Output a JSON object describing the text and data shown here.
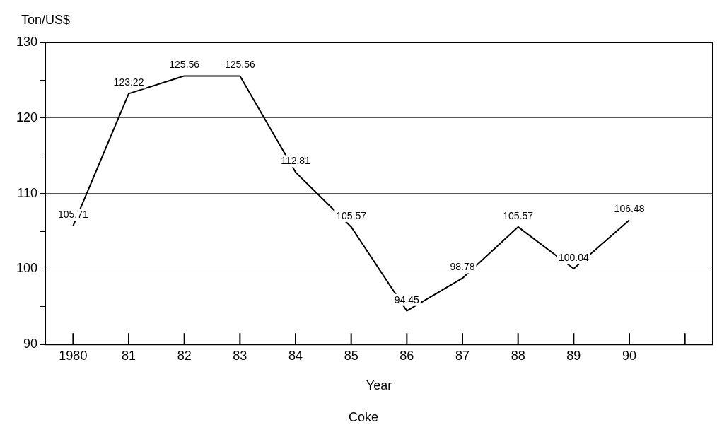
{
  "chart_data": {
    "type": "line",
    "title": "Coke",
    "xlabel": "Year",
    "ylabel": "Ton/US$",
    "categories": [
      "1980",
      "81",
      "82",
      "83",
      "84",
      "85",
      "86",
      "87",
      "88",
      "89",
      "90",
      null
    ],
    "series": [
      {
        "color": "#000000",
        "values": [
          105.71,
          123.22,
          125.56,
          125.56,
          112.81,
          105.57,
          94.45,
          98.78,
          105.57,
          100.04,
          106.48,
          null
        ]
      }
    ],
    "ylim": [
      90,
      130
    ],
    "yticks": [
      90,
      {
        "value": 95,
        "label": null
      },
      100,
      {
        "value": 105,
        "label": null
      },
      110,
      {
        "value": 115,
        "label": null
      },
      120,
      {
        "value": 125,
        "label": null
      },
      130
    ],
    "grid": "y",
    "legend": false,
    "marker": "none",
    "line_style": "solid",
    "data_labels": true
  }
}
